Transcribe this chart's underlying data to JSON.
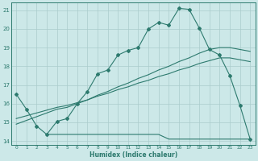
{
  "xlabel": "Humidex (Indice chaleur)",
  "bg_color": "#cce8e8",
  "grid_color": "#aacccc",
  "line_color": "#2d7a6e",
  "xlim": [
    -0.5,
    23.5
  ],
  "ylim": [
    13.8,
    21.4
  ],
  "xtick_labels": [
    "0",
    "1",
    "2",
    "3",
    "4",
    "5",
    "6",
    "7",
    "8",
    "9",
    "10",
    "11",
    "12",
    "13",
    "14",
    "15",
    "16",
    "17",
    "18",
    "19",
    "20",
    "21",
    "22",
    "23"
  ],
  "ytick_vals": [
    14,
    15,
    16,
    17,
    18,
    19,
    20,
    21
  ],
  "line1_x": [
    0,
    1,
    2,
    3,
    4,
    5,
    6,
    7,
    8,
    9,
    10,
    11,
    12,
    13,
    14,
    15,
    16,
    17,
    18,
    19,
    20,
    21,
    22,
    23
  ],
  "line1_y": [
    16.5,
    15.7,
    14.8,
    14.35,
    15.05,
    15.2,
    16.0,
    16.65,
    17.6,
    17.8,
    18.6,
    18.85,
    19.0,
    20.0,
    20.35,
    20.2,
    21.1,
    21.05,
    20.05,
    18.9,
    18.6,
    17.5,
    15.9,
    14.1
  ],
  "line2_x": [
    0,
    1,
    2,
    3,
    4,
    5,
    6,
    7,
    8,
    9,
    10,
    11,
    12,
    13,
    14,
    15,
    16,
    17,
    18,
    19,
    20,
    21,
    22,
    23
  ],
  "line2_y": [
    14.9,
    15.1,
    15.3,
    15.5,
    15.7,
    15.8,
    16.0,
    16.2,
    16.45,
    16.65,
    16.9,
    17.1,
    17.35,
    17.55,
    17.8,
    18.0,
    18.25,
    18.45,
    18.7,
    18.9,
    19.0,
    19.0,
    18.9,
    18.8
  ],
  "line3_x": [
    0,
    1,
    2,
    3,
    4,
    5,
    6,
    7,
    8,
    9,
    10,
    11,
    12,
    13,
    14,
    15,
    16,
    17,
    18,
    19,
    20,
    21,
    22,
    23
  ],
  "line3_y": [
    15.2,
    15.35,
    15.5,
    15.65,
    15.8,
    15.9,
    16.05,
    16.2,
    16.4,
    16.55,
    16.75,
    16.9,
    17.1,
    17.25,
    17.45,
    17.6,
    17.8,
    17.95,
    18.15,
    18.3,
    18.45,
    18.45,
    18.35,
    18.25
  ],
  "line4_x": [
    3,
    4,
    5,
    6,
    7,
    8,
    9,
    10,
    11,
    12,
    13,
    14,
    15,
    16,
    17,
    22,
    23
  ],
  "line4_y": [
    14.35,
    14.35,
    14.35,
    14.35,
    14.35,
    14.35,
    14.35,
    14.35,
    14.35,
    14.35,
    14.35,
    14.35,
    14.1,
    14.1,
    14.1,
    14.1,
    14.1
  ]
}
